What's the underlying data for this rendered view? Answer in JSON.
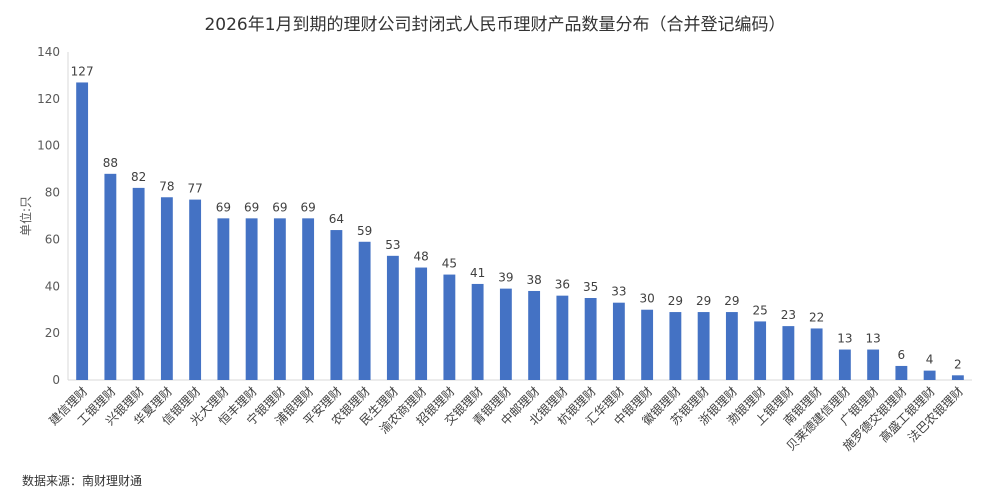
{
  "chart_data": {
    "type": "bar",
    "title": "2026年1月到期的理财公司封闭式人民币理财产品数量分布（合并登记编码）",
    "ylabel": "单位:只",
    "xlabel": "",
    "ylim": [
      0,
      140
    ],
    "yticks": [
      0,
      20,
      40,
      60,
      80,
      100,
      120,
      140
    ],
    "grid": false,
    "bar_color": "#4472C4",
    "categories": [
      "建信理财",
      "工银理财",
      "兴银理财",
      "华夏理财",
      "信银理财",
      "光大理财",
      "恒丰理财",
      "宁银理财",
      "浦银理财",
      "平安理财",
      "农银理财",
      "民生理财",
      "渝农商理财",
      "招银理财",
      "交银理财",
      "青银理财",
      "中邮理财",
      "北银理财",
      "杭银理财",
      "汇华理财",
      "中银理财",
      "徽银理财",
      "苏银理财",
      "浙银理财",
      "渤银理财",
      "上银理财",
      "南银理财",
      "贝莱德建信理财",
      "广银理财",
      "施罗德交银理财",
      "高盛工银理财",
      "法巴农银理财"
    ],
    "values": [
      127,
      88,
      82,
      78,
      77,
      69,
      69,
      69,
      69,
      64,
      59,
      53,
      48,
      45,
      41,
      39,
      38,
      36,
      35,
      33,
      30,
      29,
      29,
      29,
      25,
      23,
      22,
      13,
      13,
      6,
      4,
      2
    ]
  },
  "source": "数据来源：南财理财通"
}
